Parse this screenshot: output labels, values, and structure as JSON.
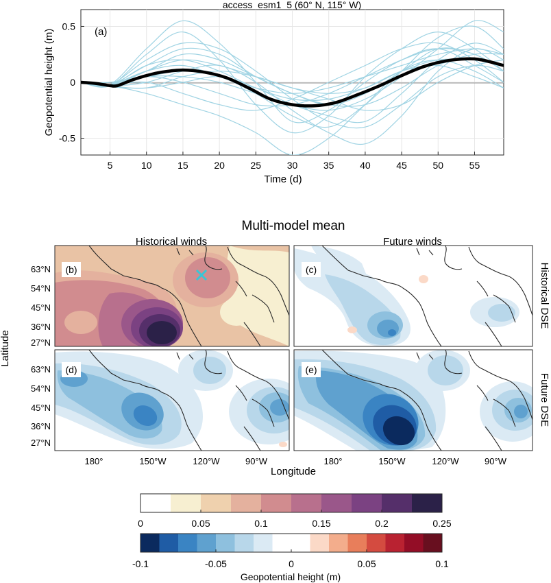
{
  "panel_a": {
    "title": "access_esm1_5 (60° N, 115° W)",
    "label": "(a)"
  },
  "chart_data": [
    {
      "type": "line",
      "title": "access_esm1_5 (60° N, 115° W)",
      "xlabel": "Time (d)",
      "ylabel": "Geopotential height (m)",
      "xlim": [
        1,
        59
      ],
      "ylim": [
        -0.65,
        0.65
      ],
      "xticks": [
        5,
        10,
        15,
        20,
        25,
        30,
        35,
        40,
        45,
        50,
        55
      ],
      "yticks": [
        -0.5,
        0,
        0.5
      ],
      "ytick_labels": [
        "-0.5",
        "0",
        "0.5"
      ],
      "grid": true,
      "colors": {
        "ensemble": "#9fd3e3",
        "mean": "#000000",
        "zero": "#8c8c8c"
      },
      "mean": {
        "x": [
          1,
          3,
          5,
          6,
          8,
          10,
          12,
          15,
          18,
          21,
          24,
          27,
          30,
          33,
          36,
          39,
          42,
          45,
          48,
          51,
          54,
          56,
          59
        ],
        "y": [
          0.0,
          -0.01,
          -0.03,
          -0.03,
          0.02,
          0.06,
          0.09,
          0.11,
          0.09,
          0.04,
          -0.05,
          -0.15,
          -0.2,
          -0.21,
          -0.18,
          -0.11,
          -0.03,
          0.06,
          0.14,
          0.19,
          0.21,
          0.2,
          0.15
        ]
      },
      "ensemble": [
        {
          "x": [
            1,
            5,
            10,
            15,
            20,
            25,
            30,
            35,
            40,
            45,
            50,
            55,
            59
          ],
          "y": [
            0,
            -0.02,
            0.3,
            0.55,
            0.35,
            0.0,
            -0.35,
            -0.25,
            0.0,
            0.2,
            0.3,
            0.15,
            0.0
          ]
        },
        {
          "x": [
            1,
            5,
            10,
            15,
            20,
            25,
            30,
            35,
            40,
            45,
            50,
            55,
            59
          ],
          "y": [
            0,
            -0.03,
            0.25,
            0.45,
            0.2,
            -0.2,
            -0.45,
            -0.3,
            0.05,
            0.3,
            0.45,
            0.3,
            0.1
          ]
        },
        {
          "x": [
            1,
            5,
            10,
            15,
            20,
            25,
            30,
            35,
            40,
            45,
            50,
            55,
            59
          ],
          "y": [
            0,
            -0.02,
            0.15,
            0.3,
            0.25,
            0.05,
            -0.1,
            -0.2,
            -0.1,
            0.1,
            0.3,
            0.25,
            0.1
          ]
        },
        {
          "x": [
            1,
            5,
            10,
            15,
            20,
            25,
            30,
            35,
            40,
            45,
            50,
            55,
            59
          ],
          "y": [
            0,
            0.0,
            0.05,
            0.1,
            0.05,
            -0.1,
            -0.3,
            -0.4,
            -0.2,
            0.1,
            0.4,
            0.5,
            0.3
          ]
        },
        {
          "x": [
            1,
            5,
            10,
            15,
            20,
            25,
            30,
            35,
            40,
            45,
            50,
            55,
            59
          ],
          "y": [
            0,
            -0.04,
            -0.05,
            0.0,
            0.05,
            -0.05,
            -0.2,
            -0.3,
            -0.35,
            -0.1,
            0.2,
            0.35,
            0.25
          ]
        },
        {
          "x": [
            1,
            5,
            10,
            15,
            20,
            25,
            30,
            35,
            40,
            45,
            50,
            55,
            59
          ],
          "y": [
            0,
            -0.03,
            0.1,
            0.2,
            0.15,
            0.05,
            -0.05,
            -0.15,
            -0.25,
            -0.2,
            0.0,
            0.15,
            0.2
          ]
        },
        {
          "x": [
            1,
            5,
            10,
            15,
            20,
            25,
            30,
            35,
            40,
            45,
            50,
            55,
            59
          ],
          "y": [
            0,
            -0.02,
            0.0,
            -0.1,
            -0.2,
            -0.25,
            -0.15,
            0.0,
            0.15,
            0.3,
            0.35,
            0.2,
            0.0
          ]
        },
        {
          "x": [
            1,
            5,
            10,
            15,
            20,
            25,
            30,
            35,
            40,
            45,
            50,
            55,
            59
          ],
          "y": [
            0,
            -0.03,
            -0.1,
            -0.2,
            -0.3,
            -0.45,
            -0.65,
            -0.5,
            -0.2,
            0.1,
            0.2,
            0.1,
            -0.05
          ]
        },
        {
          "x": [
            1,
            5,
            10,
            15,
            20,
            25,
            30,
            35,
            40,
            45,
            50,
            55,
            59
          ],
          "y": [
            0,
            -0.02,
            0.1,
            0.15,
            0.05,
            -0.05,
            -0.1,
            -0.05,
            0.05,
            0.15,
            0.25,
            0.3,
            0.25
          ]
        },
        {
          "x": [
            1,
            5,
            10,
            15,
            20,
            25,
            30,
            35,
            40,
            45,
            50,
            55,
            59
          ],
          "y": [
            0,
            -0.03,
            0.05,
            0.05,
            0.0,
            -0.1,
            -0.2,
            -0.25,
            -0.15,
            0.05,
            0.3,
            0.55,
            0.45
          ]
        },
        {
          "x": [
            1,
            5,
            10,
            15,
            20,
            25,
            30,
            35,
            40,
            45,
            50,
            55,
            59
          ],
          "y": [
            0,
            -0.02,
            0.2,
            0.35,
            0.3,
            0.1,
            -0.15,
            -0.35,
            -0.4,
            -0.2,
            0.05,
            0.15,
            0.1
          ]
        },
        {
          "x": [
            1,
            5,
            10,
            15,
            20,
            25,
            30,
            35,
            40,
            45,
            50,
            55,
            59
          ],
          "y": [
            0,
            -0.03,
            -0.05,
            0.05,
            0.1,
            0.05,
            -0.05,
            -0.1,
            -0.05,
            0.1,
            0.2,
            0.2,
            0.15
          ]
        },
        {
          "x": [
            1,
            5,
            10,
            15,
            20,
            25,
            30,
            35,
            40,
            45,
            50,
            55,
            59
          ],
          "y": [
            0,
            -0.03,
            0.0,
            0.1,
            0.15,
            0.0,
            -0.25,
            -0.45,
            -0.55,
            -0.3,
            0.1,
            0.3,
            0.2
          ]
        },
        {
          "x": [
            1,
            5,
            10,
            15,
            20,
            25,
            30,
            35,
            40,
            45,
            50,
            55,
            59
          ],
          "y": [
            0,
            -0.02,
            0.05,
            0.0,
            -0.1,
            -0.2,
            -0.2,
            -0.1,
            0.05,
            0.2,
            0.3,
            0.25,
            0.1
          ]
        },
        {
          "x": [
            1,
            5,
            10,
            15,
            20,
            25,
            30,
            35,
            40,
            45,
            50,
            55,
            59
          ],
          "y": [
            0,
            -0.03,
            0.1,
            0.25,
            0.2,
            0.05,
            -0.1,
            -0.2,
            -0.2,
            -0.05,
            0.15,
            0.25,
            0.25
          ]
        },
        {
          "x": [
            1,
            5,
            10,
            15,
            20,
            25,
            30,
            35,
            40,
            45,
            50,
            55,
            59
          ],
          "y": [
            0,
            -0.03,
            0.15,
            0.2,
            0.1,
            -0.05,
            -0.15,
            -0.15,
            -0.05,
            0.1,
            0.15,
            0.05,
            -0.05
          ]
        }
      ]
    },
    {
      "type": "heatmap",
      "title": "Multi-model mean",
      "xlabel": "Longitude",
      "ylabel": "Latitude",
      "column_titles": [
        "Historical winds",
        "Future winds"
      ],
      "row_titles": [
        "Historical DSE",
        "Future DSE"
      ],
      "lat_ticks": [
        "63°N",
        "54°N",
        "45°N",
        "36°N",
        "27°N"
      ],
      "lon_ticks": [
        "180°",
        "150°W",
        "120°W",
        "90°W"
      ],
      "panels": [
        {
          "label": "(b)",
          "scale": "sequential",
          "max_value": 0.25,
          "location_marker": {
            "lon": -115,
            "lat": 60
          }
        },
        {
          "label": "(c)",
          "scale": "diverging",
          "min_value": -0.05
        },
        {
          "label": "(d)",
          "scale": "diverging",
          "min_value": -0.07
        },
        {
          "label": "(e)",
          "scale": "diverging",
          "min_value": -0.1
        }
      ],
      "colorbars": [
        {
          "ticks": [
            "0",
            "0.05",
            "0.1",
            "0.15",
            "0.2",
            "0.25"
          ],
          "colors": [
            "#ffffff",
            "#f7efd1",
            "#efd1ae",
            "#e4b19e",
            "#d18c8f",
            "#b8708d",
            "#9a578a",
            "#7b4282",
            "#552f6a",
            "#2b2148"
          ]
        },
        {
          "ticks": [
            "-0.1",
            "-0.05",
            "0",
            "0.05",
            "0.1"
          ],
          "label": "Geopotential height (m)",
          "colors": [
            "#0b2a5e",
            "#1f5ca5",
            "#3a84c3",
            "#5fa1cf",
            "#8ec0de",
            "#b8d7ea",
            "#dbeaf4",
            "#ffffff",
            "#ffffff",
            "#fbd9c7",
            "#f3ad8c",
            "#e87e5b",
            "#d44b40",
            "#b92231",
            "#930d26",
            "#680f1f"
          ]
        }
      ]
    }
  ]
}
